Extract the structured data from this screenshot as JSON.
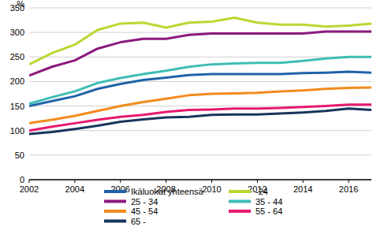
{
  "chart_data": {
    "type": "line",
    "y_label": "%",
    "x": [
      2002,
      2003,
      2004,
      2005,
      2006,
      2007,
      2008,
      2009,
      2010,
      2011,
      2012,
      2013,
      2014,
      2015,
      2016,
      2017
    ],
    "xlim": [
      2002,
      2017
    ],
    "xticks": [
      2002,
      2004,
      2006,
      2008,
      2010,
      2012,
      2014,
      2016
    ],
    "ylim": [
      0,
      350
    ],
    "yticks": [
      0,
      50,
      100,
      150,
      200,
      250,
      300,
      350
    ],
    "grid": true,
    "legend": "bottom",
    "series": [
      {
        "name": "Ikäluokat yhteensä",
        "color": "#1f63a8",
        "values": [
          150,
          160,
          170,
          185,
          195,
          203,
          208,
          213,
          215,
          215,
          215,
          215,
          217,
          218,
          220,
          218
        ]
      },
      {
        "name": "-24",
        "color": "#bcd631",
        "values": [
          235,
          258,
          275,
          305,
          318,
          320,
          310,
          320,
          322,
          330,
          320,
          316,
          316,
          312,
          314,
          318
        ]
      },
      {
        "name": "25 - 34",
        "color": "#8c1a7e",
        "values": [
          212,
          230,
          243,
          267,
          280,
          287,
          287,
          295,
          298,
          298,
          298,
          298,
          298,
          302,
          302,
          302
        ]
      },
      {
        "name": "35 - 44",
        "color": "#3dbdb5",
        "values": [
          155,
          168,
          180,
          197,
          207,
          215,
          222,
          230,
          235,
          237,
          238,
          238,
          242,
          247,
          250,
          250
        ]
      },
      {
        "name": "45 - 54",
        "color": "#f28b1d",
        "values": [
          115,
          122,
          130,
          140,
          150,
          158,
          165,
          172,
          175,
          176,
          177,
          180,
          182,
          185,
          187,
          188
        ]
      },
      {
        "name": "55 - 64",
        "color": "#e5196f",
        "values": [
          100,
          108,
          115,
          122,
          128,
          132,
          138,
          142,
          143,
          145,
          145,
          146,
          148,
          150,
          153,
          153
        ]
      },
      {
        "name": "65 -",
        "color": "#17355c",
        "values": [
          93,
          97,
          103,
          110,
          118,
          123,
          127,
          128,
          132,
          133,
          133,
          135,
          137,
          140,
          145,
          142
        ]
      }
    ]
  }
}
